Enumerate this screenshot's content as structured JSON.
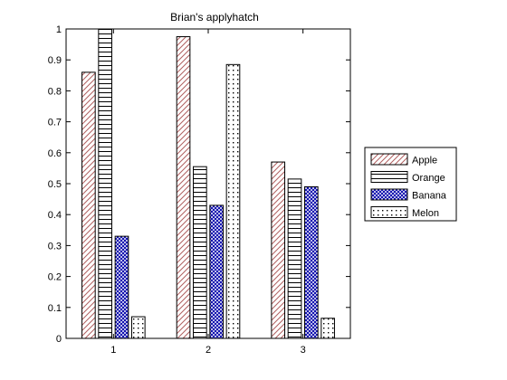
{
  "chart_data": {
    "type": "bar",
    "title": "Brian's applyhatch",
    "xlabel": "",
    "ylabel": "",
    "categories": [
      "1",
      "2",
      "3"
    ],
    "ylim": [
      0,
      1
    ],
    "yticks": [
      "0",
      "0.1",
      "0.2",
      "0.3",
      "0.4",
      "0.5",
      "0.6",
      "0.7",
      "0.8",
      "0.9",
      "1"
    ],
    "grid": false,
    "legend_position": "right",
    "series": [
      {
        "name": "Apple",
        "values": [
          0.86,
          0.975,
          0.57
        ],
        "color": "#a05050",
        "hatch": "diagonal"
      },
      {
        "name": "Orange",
        "values": [
          1.0,
          0.555,
          0.515
        ],
        "color": "#000000",
        "hatch": "horizontal"
      },
      {
        "name": "Banana",
        "values": [
          0.33,
          0.43,
          0.49
        ],
        "color": "#0000aa",
        "hatch": "crosshatch"
      },
      {
        "name": "Melon",
        "values": [
          0.07,
          0.885,
          0.065
        ],
        "color": "#000000",
        "hatch": "dots"
      }
    ]
  }
}
